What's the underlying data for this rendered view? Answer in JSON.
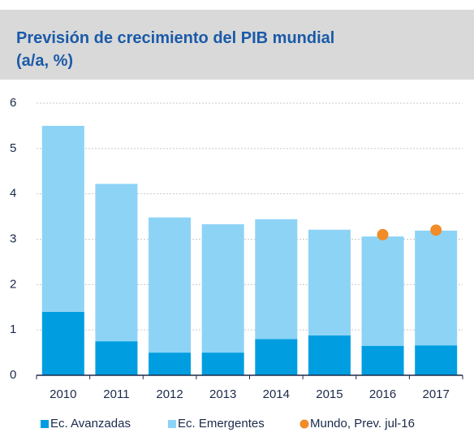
{
  "chart_data": {
    "type": "bar",
    "stacked": true,
    "title": [
      "Previsión de crecimiento del PIB mundial",
      "(a/a, %)"
    ],
    "categories": [
      "2010",
      "2011",
      "2012",
      "2013",
      "2014",
      "2015",
      "2016",
      "2017"
    ],
    "series": [
      {
        "name": "Ec. Avanzadas",
        "color": "#009ee0",
        "values": [
          1.4,
          0.75,
          0.5,
          0.5,
          0.8,
          0.88,
          0.65,
          0.66
        ]
      },
      {
        "name": "Ec. Emergentes",
        "color": "#8dd3f6",
        "values": [
          4.1,
          3.47,
          2.98,
          2.83,
          2.64,
          2.33,
          2.41,
          2.53
        ]
      },
      {
        "name": "Mundo, Prev. jul-16",
        "color": "#f28c28",
        "type": "scatter",
        "values": [
          null,
          null,
          null,
          null,
          null,
          null,
          3.1,
          3.2
        ]
      }
    ],
    "ylim": [
      0,
      6
    ],
    "yticks": [
      0,
      1,
      2,
      3,
      4,
      5,
      6
    ],
    "grid": true,
    "legend": "bottom"
  }
}
